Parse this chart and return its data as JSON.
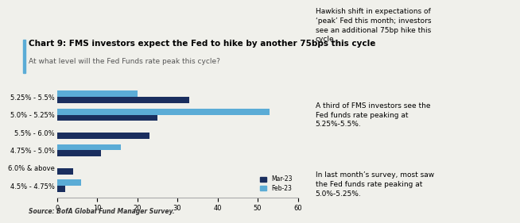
{
  "title": "Chart 9: FMS investors expect the Fed to hike by another 75bps this cycle",
  "subtitle": "At what level will the Fed Funds rate peak this cycle?",
  "source": "Source: BofA Global Fund Manager Survey.",
  "categories": [
    "5.25% - 5.5%",
    "5.0% - 5.25%",
    "5.5% - 6.0%",
    "4.75% - 5.0%",
    "6.0% & above",
    "4.5% - 4.75%"
  ],
  "mar23": [
    33,
    25,
    23,
    11,
    4,
    2
  ],
  "feb23": [
    20,
    53,
    0,
    16,
    0,
    6
  ],
  "color_mar23": "#1a2e5e",
  "color_feb23": "#5bacd6",
  "xlim": [
    0,
    60
  ],
  "xticks": [
    0,
    10,
    20,
    30,
    40,
    50,
    60
  ],
  "legend_mar": "Mar-23",
  "legend_feb": "Feb-23",
  "right_text": [
    "Hawkish shift in expectations of\n‘peak’ Fed this month; investors\nsee an additional 75bp hike this\ncycle.",
    "A third of FMS investors see the\nFed funds rate peaking at\n5.25%-5.5%.",
    "In last month’s survey, most saw\nthe Fed funds rate peaking at\n5.0%-5.25%."
  ],
  "title_fontsize": 7.5,
  "subtitle_fontsize": 6.5,
  "bar_height": 0.35,
  "background_color": "#f0f0eb"
}
